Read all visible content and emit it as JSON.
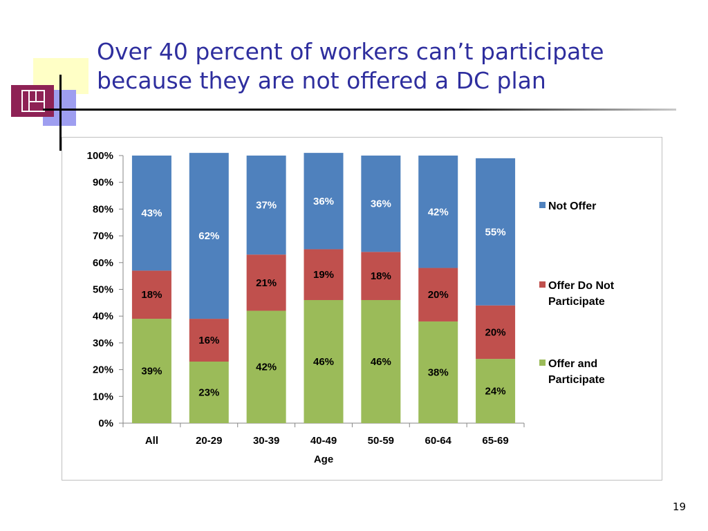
{
  "slide": {
    "title_line1": "Over 40 percent of workers can’t participate",
    "title_line2": "because they are not offered a DC plan",
    "page_number": "19"
  },
  "chart_data": {
    "type": "bar",
    "stacked": true,
    "categories": [
      "All",
      "20-29",
      "30-39",
      "40-49",
      "50-59",
      "60-64",
      "65-69"
    ],
    "series": [
      {
        "name": "Offer and Participate",
        "color": "#9bbb59",
        "values": [
          39,
          23,
          42,
          46,
          46,
          38,
          24
        ],
        "labels": [
          "39%",
          "23%",
          "42%",
          "46%",
          "46%",
          "38%",
          "24%"
        ],
        "label_color": "#000000"
      },
      {
        "name": "Offer Do Not Participate",
        "color": "#c0504d",
        "values": [
          18,
          16,
          21,
          19,
          18,
          20,
          20
        ],
        "labels": [
          "18%",
          "16%",
          "21%",
          "19%",
          "18%",
          "20%",
          "20%"
        ],
        "label_color": "#000000"
      },
      {
        "name": "Not Offer",
        "color": "#4f81bd",
        "values": [
          43,
          62,
          37,
          36,
          36,
          42,
          55
        ],
        "labels": [
          "43%",
          "62%",
          "37%",
          "36%",
          "36%",
          "42%",
          "55%"
        ],
        "label_color": "#ffffff"
      }
    ],
    "xlabel": "Age",
    "ylabel": "",
    "ylim": [
      0,
      100
    ],
    "yticks": [
      "0%",
      "10%",
      "20%",
      "30%",
      "40%",
      "50%",
      "60%",
      "70%",
      "80%",
      "90%",
      "100%"
    ],
    "grid": false,
    "legend": {
      "position": "right",
      "entries": [
        {
          "lines": [
            "Not Offer"
          ],
          "color": "#4f81bd"
        },
        {
          "lines": [
            "Offer Do Not",
            "Participate"
          ],
          "color": "#c0504d"
        },
        {
          "lines": [
            "Offer and",
            "Participate"
          ],
          "color": "#9bbb59"
        }
      ]
    }
  }
}
